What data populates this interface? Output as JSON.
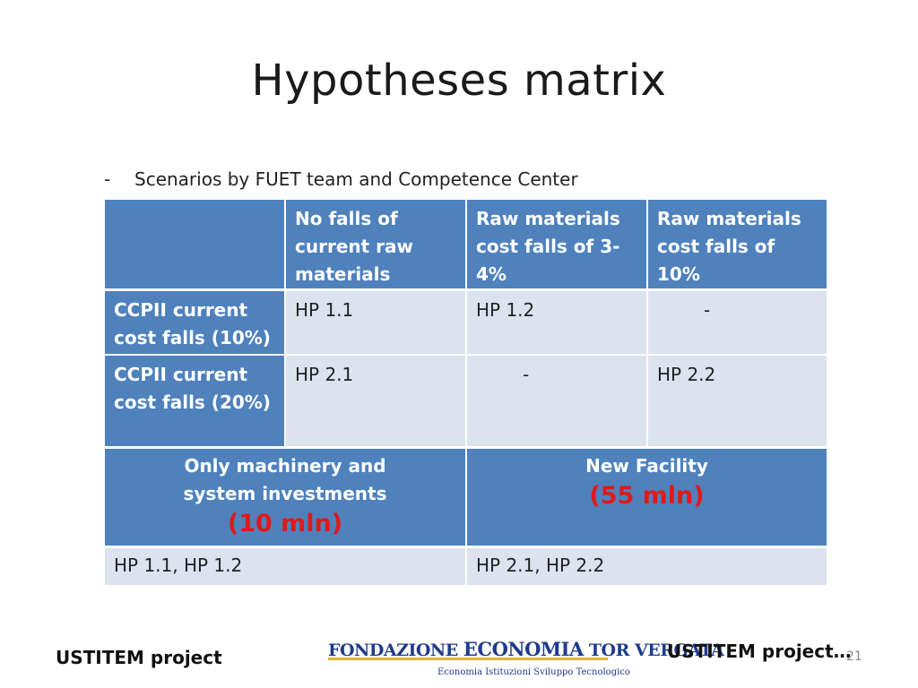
{
  "slide": {
    "title": "Hypotheses matrix",
    "bullet_dash": "-",
    "bullet_text": "Scenarios by FUET team and Competence Center"
  },
  "matrix": {
    "col_headers": [
      "No falls of current raw materials",
      "Raw materials cost falls of 3-4%",
      "Raw materials cost falls of 10%"
    ],
    "rows": [
      {
        "label": "CCPII  current cost falls (10%)",
        "cells": [
          "HP 1.1",
          "HP 1.2",
          "-"
        ]
      },
      {
        "label": "CCPII current cost falls (20%)",
        "cells": [
          "HP 2.1",
          "-",
          "HP 2.2"
        ]
      }
    ]
  },
  "investments": {
    "left_label": "Only  machinery and system investments",
    "left_amount": "(10 mln)",
    "right_label": "New Facility",
    "right_amount": "(55 mln)",
    "left_hps": "HP 1.1, HP 1.2",
    "right_hps": "HP 2.1, HP 2.2",
    "amount_color": "#e01919"
  },
  "footer": {
    "left": "USTITEM project",
    "right": "USTITEM project…",
    "page": "21",
    "logo_line1_a": "FONDAZIONE ",
    "logo_line1_b": "ECONOMIA",
    "logo_line1_c": " TOR VERGATA",
    "logo_line2": "Economia  Istituzioni  Sviluppo Tecnologico"
  },
  "colors": {
    "header_blue": "#4f81bd",
    "row_light": "#dce3ef"
  }
}
